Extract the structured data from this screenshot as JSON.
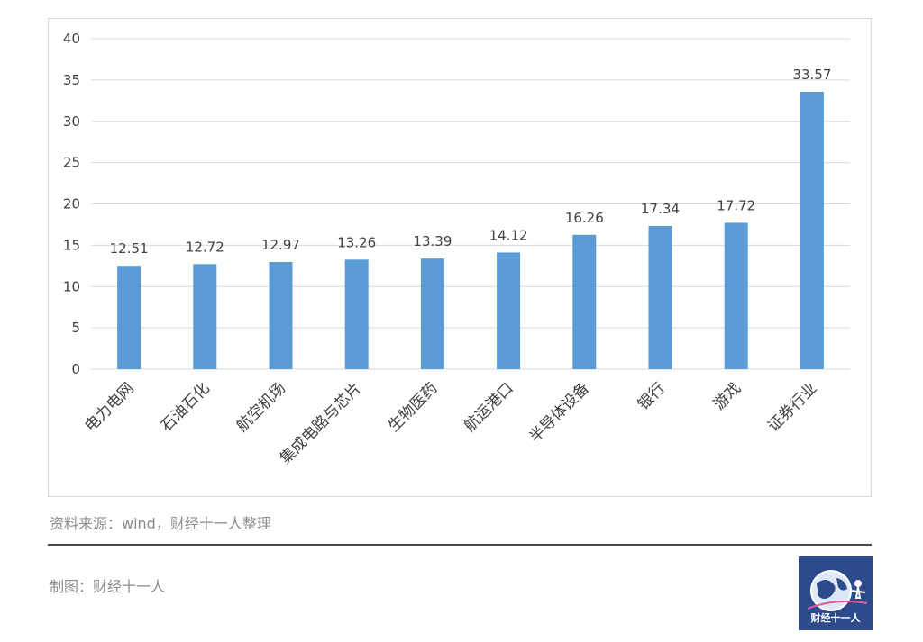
{
  "chart_data": {
    "type": "bar",
    "title": "",
    "xlabel": "",
    "ylabel": "",
    "ylim": [
      0,
      40
    ],
    "yticks": [
      0,
      5,
      10,
      15,
      20,
      25,
      30,
      35,
      40
    ],
    "grid": true,
    "legend": "none",
    "categories": [
      "电力电网",
      "石油石化",
      "航空机场",
      "集成电路与芯片",
      "生物医药",
      "航运港口",
      "半导体设备",
      "银行",
      "游戏",
      "证券行业"
    ],
    "values": [
      12.51,
      12.72,
      12.97,
      13.26,
      13.39,
      14.12,
      16.26,
      17.34,
      17.72,
      33.57
    ],
    "value_labels": [
      "12.51",
      "12.72",
      "12.97",
      "13.26",
      "13.39",
      "14.12",
      "16.26",
      "17.34",
      "17.72",
      "33.57"
    ],
    "bar_color": "#5b9bd5",
    "grid_color": "#d9d9d9",
    "text_color": "#404040"
  },
  "footer": {
    "source": "资料来源：wind，财经十一人整理",
    "credit": "制图：财经十一人",
    "logo_text": "财经十一人",
    "logo_color": "#2d4a8c"
  }
}
